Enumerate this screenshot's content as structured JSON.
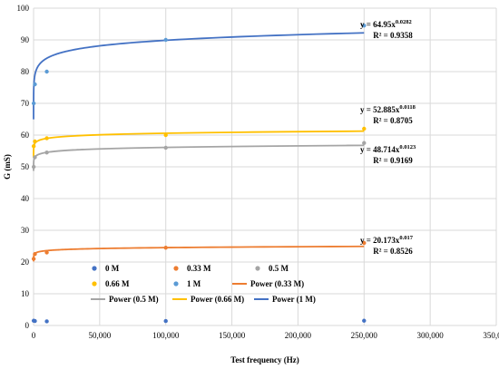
{
  "chart_data": {
    "type": "scatter",
    "xlabel": "Test frequency (Hz)",
    "ylabel": "G (mS)",
    "xlim": [
      0,
      350000
    ],
    "ylim": [
      0,
      100
    ],
    "x_ticks": [
      0,
      50000,
      100000,
      150000,
      200000,
      250000,
      300000,
      350000
    ],
    "x_tick_labels": [
      "0",
      "50,000",
      "100,000",
      "150,000",
      "200,000",
      "250,000",
      "300,000",
      "350,000"
    ],
    "y_ticks": [
      0,
      10,
      20,
      30,
      40,
      50,
      60,
      70,
      80,
      90,
      100
    ],
    "y_tick_labels": [
      "0",
      "10",
      "20",
      "30",
      "40",
      "50",
      "60",
      "70",
      "80",
      "90",
      "100"
    ],
    "grid": true,
    "legend_position": "bottom-inside",
    "series": [
      {
        "name": "0 M",
        "color": "#4472c4",
        "x": [
          100,
          1000,
          10000,
          100000,
          250000
        ],
        "y": [
          1.5,
          1.4,
          1.3,
          1.4,
          1.5
        ]
      },
      {
        "name": "0.33 M",
        "color": "#ed7d31",
        "x": [
          100,
          1000,
          10000,
          100000,
          250000
        ],
        "y": [
          21.0,
          22.5,
          23.0,
          24.5,
          26.0
        ]
      },
      {
        "name": "0.5 M",
        "color": "#a5a5a5",
        "x": [
          100,
          1000,
          10000,
          100000,
          250000
        ],
        "y": [
          50.0,
          53.0,
          54.5,
          56.0,
          57.5
        ]
      },
      {
        "name": "0.66 M",
        "color": "#ffc000",
        "x": [
          100,
          1000,
          10000,
          100000,
          250000
        ],
        "y": [
          56.5,
          58.0,
          59.0,
          60.0,
          62.0
        ]
      },
      {
        "name": "1 M",
        "color": "#5b9bd5",
        "x": [
          100,
          1000,
          10000,
          100000,
          250000
        ],
        "y": [
          70.0,
          76.0,
          80.0,
          90.0,
          94.5
        ]
      }
    ],
    "trendlines": [
      {
        "name": "Power (0.33 M)",
        "color": "#ed7d31",
        "a": 20.173,
        "b": 0.017,
        "equation": "y = 20.173x^0.017",
        "r2": "R² = 0.8526"
      },
      {
        "name": "Power (0.5 M)",
        "color": "#a5a5a5",
        "a": 48.714,
        "b": 0.0123,
        "equation": "y = 48.714x^0.0123",
        "r2": "R² = 0.9169"
      },
      {
        "name": "Power (0.66 M)",
        "color": "#ffc000",
        "a": 52.885,
        "b": 0.0118,
        "equation": "y = 52.885x^0.0118",
        "r2": "R² = 0.8705"
      },
      {
        "name": "Power (1 M)",
        "color": "#4472c4",
        "a": 64.95,
        "b": 0.0282,
        "equation": "y = 64.95x^0.0282",
        "r2": "R² = 0.9358"
      }
    ]
  }
}
